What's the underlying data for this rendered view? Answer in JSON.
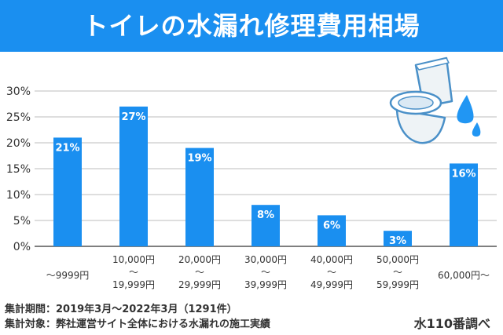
{
  "title": "トイレの水漏れ修理費用相場",
  "notes": {
    "period": "集計期間：2019年3月〜2022年3月（1291件）",
    "scope": "集計対象：弊社運営サイト全体における水漏れの施工実績"
  },
  "source": "水110番調べ",
  "colors": {
    "accent": "#1a8ff0",
    "bar": "#1a8ff0",
    "grid": "#bdbdbd",
    "text": "#333333"
  },
  "icons": {
    "illustration": "toilet-leak-icon"
  },
  "chart_data": {
    "type": "bar",
    "categories": [
      [
        "〜9999円"
      ],
      [
        "10,000円",
        "〜",
        "19,999円"
      ],
      [
        "20,000円",
        "〜",
        "29,999円"
      ],
      [
        "30,000円",
        "〜",
        "39,999円"
      ],
      [
        "40,000円",
        "〜",
        "49,999円"
      ],
      [
        "50,000円",
        "〜",
        "59,999円"
      ],
      [
        "60,000円〜"
      ]
    ],
    "values": [
      21,
      27,
      19,
      8,
      6,
      3,
      16
    ],
    "value_labels": [
      "21%",
      "27%",
      "19%",
      "8%",
      "6%",
      "3%",
      "16%"
    ],
    "ylim": [
      0,
      30
    ],
    "yticks": [
      0,
      5,
      10,
      15,
      20,
      25,
      30
    ],
    "ytick_labels": [
      "0%",
      "5%",
      "10%",
      "15%",
      "20%",
      "25%",
      "30%"
    ],
    "grid": true,
    "legend": "none"
  }
}
